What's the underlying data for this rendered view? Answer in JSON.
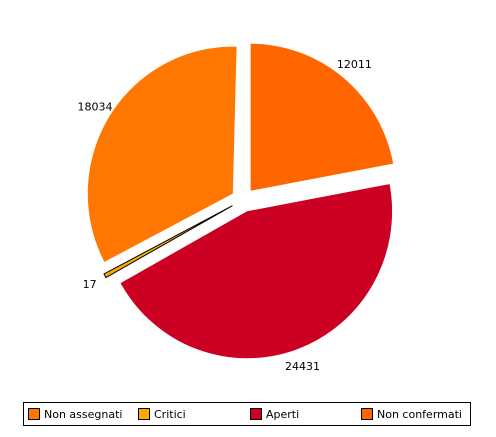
{
  "chart_data": {
    "type": "pie",
    "title": "",
    "slices": [
      {
        "label": "Non confermati",
        "value": 12011,
        "value_label": "12011",
        "color": "#ff6600",
        "exploded": true
      },
      {
        "label": "Aperti",
        "value": 24431,
        "value_label": "24431",
        "color": "#cc0022",
        "exploded": true
      },
      {
        "label": "Critici",
        "value": 17,
        "value_label": "17",
        "color": "#ffaa00",
        "exploded": true
      },
      {
        "label": "Non assegnati",
        "value": 18034,
        "value_label": "18034",
        "color": "#ff7700",
        "exploded": true
      }
    ],
    "legend_placement": "bottom"
  },
  "legend": {
    "items": [
      {
        "label": "Non assegnati",
        "color": "#ff7700"
      },
      {
        "label": "Critici",
        "color": "#ffaa00"
      },
      {
        "label": "Aperti",
        "color": "#cc0022"
      },
      {
        "label": "Non confermati",
        "color": "#ff6600"
      }
    ]
  }
}
